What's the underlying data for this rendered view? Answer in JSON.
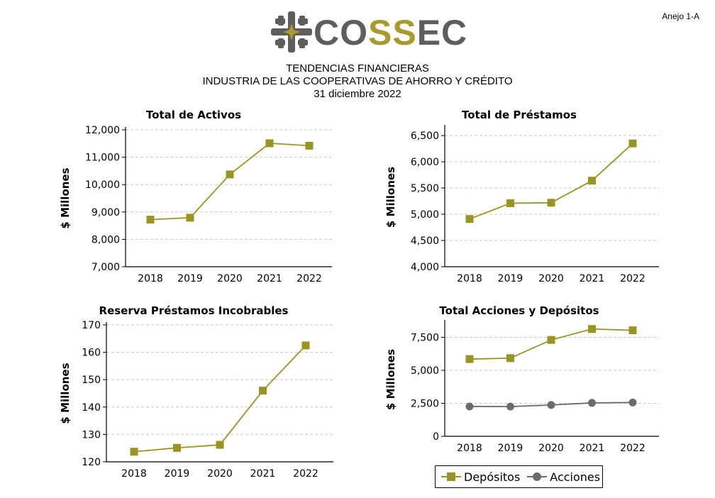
{
  "annex_label": "Anejo 1-A",
  "logo": {
    "prefix": "CO",
    "highlight": "SS",
    "suffix": "EC"
  },
  "header": {
    "line1": "TENDENCIAS FINANCIERAS",
    "line2": "INDUSTRIA DE LAS COOPERATIVAS DE AHORRO Y CRÉDITO",
    "line3": "31 diciembre 2022"
  },
  "colors": {
    "depositos": "#9a9422",
    "acciones": "#6b6b6b",
    "grid": "#c8c8c8"
  },
  "legend": {
    "depositos": "Depósitos",
    "acciones": "Acciones"
  },
  "chart_data": [
    {
      "type": "line",
      "title": "Total de Activos",
      "ylabel": "$ Millones",
      "x": [
        "2018",
        "2019",
        "2020",
        "2021",
        "2022"
      ],
      "ylim": [
        7000,
        12000
      ],
      "yticks": [
        7000,
        8000,
        9000,
        10000,
        11000,
        12000
      ],
      "ytick_labels": [
        "7,000",
        "8,000",
        "9,000",
        "10,000",
        "11,000",
        "12,000"
      ],
      "grid": true,
      "series": [
        {
          "values": [
            8720,
            8790,
            10370,
            11510,
            11420
          ],
          "marker": "square",
          "color": "#9a9422"
        }
      ]
    },
    {
      "type": "line",
      "title": "Total de Préstamos",
      "ylabel": "$ Millones",
      "x": [
        "2018",
        "2019",
        "2020",
        "2021",
        "2022"
      ],
      "ylim": [
        4000,
        6650
      ],
      "yticks": [
        4000,
        4500,
        5000,
        5500,
        6000,
        6500
      ],
      "ytick_labels": [
        "4,000",
        "4,500",
        "5,000",
        "5,500",
        "6,000",
        "6,500"
      ],
      "grid": true,
      "series": [
        {
          "values": [
            4910,
            5210,
            5220,
            5640,
            6350
          ],
          "marker": "square",
          "color": "#9a9422"
        }
      ]
    },
    {
      "type": "line",
      "title": "Reserva Préstamos Incobrables",
      "ylabel": "$ Millones",
      "x": [
        "2018",
        "2019",
        "2020",
        "2021",
        "2022"
      ],
      "ylim": [
        120,
        170
      ],
      "yticks": [
        120,
        130,
        140,
        150,
        160,
        170
      ],
      "ytick_labels": [
        "120",
        "130",
        "140",
        "150",
        "160",
        "170"
      ],
      "grid": true,
      "series": [
        {
          "values": [
            123.7,
            125.1,
            126.2,
            146.0,
            162.5
          ],
          "marker": "square",
          "color": "#9a9422"
        }
      ]
    },
    {
      "type": "line",
      "title": "Total Acciones y Depósitos",
      "ylabel": "$ Millones",
      "x": [
        "2018",
        "2019",
        "2020",
        "2021",
        "2022"
      ],
      "ylim": [
        0,
        8600
      ],
      "yticks": [
        0,
        2500,
        5000,
        7500
      ],
      "ytick_labels": [
        "0",
        "2,500",
        "5,000",
        "7,500"
      ],
      "grid": true,
      "legend_position": "bottom",
      "series": [
        {
          "name": "Depósitos",
          "values": [
            5850,
            5920,
            7300,
            8130,
            8030
          ],
          "marker": "square",
          "color": "#9a9422"
        },
        {
          "name": "Acciones",
          "values": [
            2260,
            2250,
            2370,
            2530,
            2560
          ],
          "marker": "circle",
          "color": "#6b6b6b"
        }
      ]
    }
  ]
}
